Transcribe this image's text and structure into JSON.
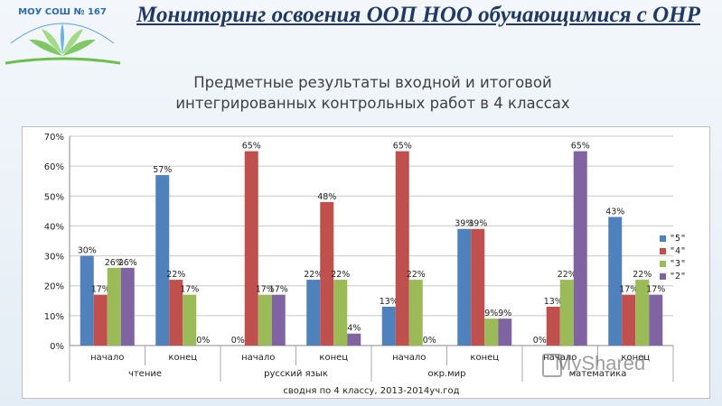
{
  "header": {
    "logo_text": "МОУ СОШ № 167",
    "title": "Мониторинг освоения ООП НОО обучающимися с ОНР",
    "subtitle": "Предметные результаты входной и итоговой интегрированных контрольных работ в 4 классах"
  },
  "watermark": "MyShared",
  "colors": {
    "s5": "#4f81bd",
    "s4": "#c0504d",
    "s3": "#9bbb59",
    "s2": "#8064a2"
  },
  "chart_data": {
    "type": "bar",
    "categories": [
      "начало",
      "конец",
      "начало",
      "конец",
      "начало",
      "конец",
      "начало",
      "конец"
    ],
    "groups": [
      {
        "label": "чтение",
        "span": [
          0,
          1
        ]
      },
      {
        "label": "русский язык",
        "span": [
          2,
          3
        ]
      },
      {
        "label": "окр.мир",
        "span": [
          4,
          5
        ]
      },
      {
        "label": "математика",
        "span": [
          6,
          7
        ]
      }
    ],
    "series": [
      {
        "name": "\"5\"",
        "values": [
          30,
          57,
          0,
          22,
          13,
          39,
          0,
          43
        ],
        "labels": [
          "30%",
          "57%",
          "0%",
          "22%",
          "13%",
          "39%",
          "0%",
          "43%"
        ]
      },
      {
        "name": "\"4\"",
        "values": [
          17,
          22,
          65,
          48,
          65,
          39,
          13,
          17
        ],
        "labels": [
          "17%",
          "22%",
          "65%",
          "48%",
          "65%",
          "39%",
          "13%",
          "17%"
        ]
      },
      {
        "name": "\"3\"",
        "values": [
          26,
          17,
          17,
          22,
          22,
          9,
          22,
          22
        ],
        "labels": [
          "26%",
          "17%",
          "17%",
          "22%",
          "22%",
          "9%",
          "22%",
          "22%"
        ]
      },
      {
        "name": "\"2\"",
        "values": [
          26,
          0,
          17,
          4,
          0,
          9,
          65,
          17
        ],
        "labels": [
          "26%",
          "0%",
          "17%",
          "4%",
          "0%",
          "9%",
          "65%",
          "17%"
        ]
      }
    ],
    "ylim": [
      0,
      70
    ],
    "yticks": [
      "0%",
      "10%",
      "20%",
      "30%",
      "40%",
      "50%",
      "60%",
      "70%"
    ],
    "xlabel": "сводня по 4 классу, 2013-2014уч.год",
    "grid": true,
    "legend_position": "right"
  }
}
